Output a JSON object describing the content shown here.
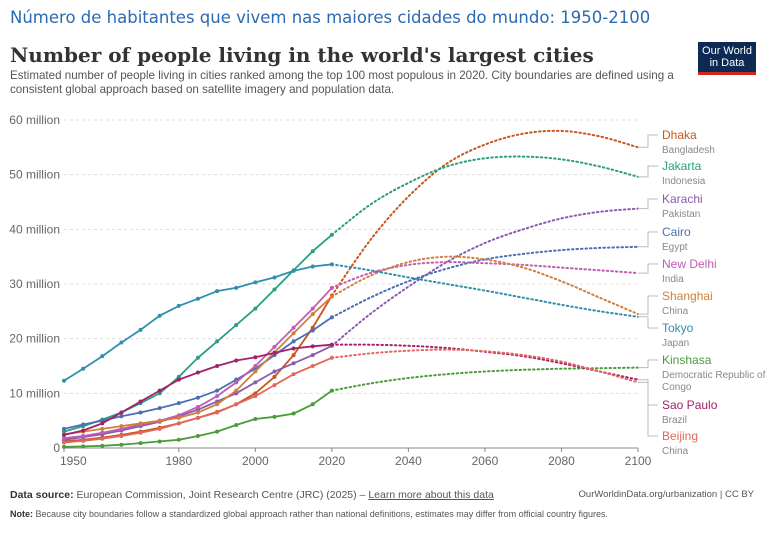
{
  "header": {
    "banner": "Número de habitantes que vivem nas maiores cidades do mundo: 1950-2100",
    "title": "Number of people living in the world's largest cities",
    "subtitle": "Estimated number of people living in cities ranked among the top 100 most populous in 2020. City boundaries are defined using a consistent global approach based on satellite imagery and population data.",
    "logo_line1": "Our World",
    "logo_line2": "in Data"
  },
  "footer": {
    "source_label": "Data source:",
    "source_text": "European Commission, Joint Research Centre (JRC) (2025) –",
    "source_link": "Learn more about this data",
    "right_text": "OurWorldinData.org/urbanization | CC BY",
    "note_label": "Note:",
    "note_text": "Because city boundaries follow a standardized global approach rather than national definitions, estimates may differ from official country figures."
  },
  "chart_data": {
    "type": "line",
    "title": "Number of people living in the world's largest cities",
    "ylim": [
      0,
      60
    ],
    "xlim": [
      1950,
      2100
    ],
    "y_ticks": [
      0,
      10,
      20,
      30,
      40,
      50,
      60
    ],
    "y_tick_labels": [
      "0",
      "10 million",
      "20 million",
      "30 million",
      "40 million",
      "50 million",
      "60 million"
    ],
    "x_ticks": [
      1950,
      1980,
      2000,
      2020,
      2040,
      2060,
      2080,
      2100
    ],
    "x_tick_labels": [
      "1950",
      "1980",
      "2000",
      "2020",
      "2040",
      "2060",
      "2080",
      "2100"
    ],
    "grid": "horizontal dashed",
    "legend": "right, labels at line ends",
    "observed_x": [
      1950,
      1955,
      1960,
      1965,
      1970,
      1975,
      1980,
      1985,
      1990,
      1995,
      2000,
      2005,
      2010,
      2015,
      2020
    ],
    "projection_x": [
      2020,
      2030,
      2040,
      2050,
      2060,
      2070,
      2080,
      2090,
      2100
    ],
    "series": [
      {
        "name": "Dhaka",
        "country": "Bangladesh",
        "color": "#c8561c",
        "observed": [
          1.2,
          1.5,
          1.9,
          2.4,
          3.0,
          3.7,
          4.5,
          5.5,
          6.6,
          8.0,
          10.0,
          13.0,
          17.0,
          22.0,
          27.9
        ],
        "projection": [
          27.9,
          38.0,
          46.0,
          52.0,
          55.5,
          57.5,
          58.0,
          57.0,
          55.0
        ]
      },
      {
        "name": "Jakarta",
        "country": "Indonesia",
        "color": "#2a9d82",
        "observed": [
          3.0,
          4.0,
          5.2,
          6.5,
          8.2,
          10.0,
          13.0,
          16.5,
          19.5,
          22.5,
          25.5,
          29.0,
          32.5,
          36.0,
          39.0
        ],
        "projection": [
          39.0,
          44.5,
          48.5,
          51.5,
          53.0,
          53.3,
          52.8,
          51.5,
          49.6
        ]
      },
      {
        "name": "Karachi",
        "country": "Pakistan",
        "color": "#8a5ab0",
        "observed": [
          1.5,
          2.0,
          2.5,
          3.2,
          4.0,
          4.8,
          5.8,
          7.0,
          8.5,
          10.0,
          12.0,
          14.0,
          15.5,
          17.0,
          18.7
        ],
        "projection": [
          18.7,
          24.5,
          29.5,
          34.0,
          37.5,
          40.0,
          42.0,
          43.2,
          43.8
        ]
      },
      {
        "name": "Cairo",
        "country": "Egypt",
        "color": "#4b6fb3",
        "observed": [
          3.5,
          4.3,
          5.0,
          5.8,
          6.5,
          7.3,
          8.2,
          9.2,
          10.5,
          12.5,
          14.5,
          17.0,
          19.5,
          21.5,
          23.9
        ],
        "projection": [
          23.9,
          27.5,
          30.5,
          32.8,
          34.5,
          35.5,
          36.2,
          36.6,
          36.8
        ]
      },
      {
        "name": "New Delhi",
        "country": "India",
        "color": "#c15cb4",
        "observed": [
          1.8,
          2.2,
          2.8,
          3.5,
          4.3,
          5.0,
          6.0,
          7.5,
          9.5,
          12.0,
          15.0,
          18.5,
          22.0,
          25.5,
          29.3
        ],
        "projection": [
          29.3,
          32.0,
          33.5,
          34.0,
          33.8,
          33.5,
          33.0,
          32.5,
          32.0
        ]
      },
      {
        "name": "Shanghai",
        "country": "China",
        "color": "#d27f3a",
        "observed": [
          2.5,
          3.0,
          3.5,
          4.0,
          4.5,
          5.0,
          5.5,
          6.5,
          8.0,
          10.5,
          14.0,
          17.5,
          21.0,
          24.5,
          27.7
        ],
        "projection": [
          27.7,
          31.5,
          34.0,
          35.0,
          34.5,
          33.0,
          30.5,
          27.5,
          24.5
        ]
      },
      {
        "name": "Tokyo",
        "country": "Japan",
        "color": "#2f8fae",
        "observed": [
          12.3,
          14.5,
          16.8,
          19.3,
          21.6,
          24.2,
          26.0,
          27.3,
          28.7,
          29.3,
          30.3,
          31.2,
          32.4,
          33.2,
          33.6
        ],
        "projection": [
          33.6,
          32.5,
          31.2,
          30.0,
          28.8,
          27.5,
          26.2,
          25.0,
          24.0
        ]
      },
      {
        "name": "Kinshasa",
        "country": "Democratic Republic of Congo",
        "color": "#4a9c3a",
        "observed": [
          0.2,
          0.3,
          0.4,
          0.6,
          0.9,
          1.2,
          1.5,
          2.2,
          3.0,
          4.2,
          5.3,
          5.7,
          6.3,
          8.0,
          10.5
        ],
        "projection": [
          10.5,
          11.8,
          12.8,
          13.5,
          14.0,
          14.3,
          14.5,
          14.6,
          14.7
        ]
      },
      {
        "name": "Sao Paulo",
        "country": "Brazil",
        "color": "#a4206a",
        "observed": [
          2.4,
          3.2,
          4.5,
          6.5,
          8.5,
          10.5,
          12.5,
          13.8,
          15.0,
          16.0,
          16.6,
          17.4,
          18.2,
          18.6,
          18.9
        ],
        "projection": [
          18.9,
          18.9,
          18.7,
          18.3,
          17.6,
          16.8,
          15.5,
          14.0,
          12.5
        ]
      },
      {
        "name": "Beijing",
        "country": "China",
        "color": "#e2685d",
        "observed": [
          1.0,
          1.3,
          1.7,
          2.2,
          2.8,
          3.5,
          4.5,
          5.5,
          6.5,
          8.0,
          9.5,
          11.5,
          13.5,
          15.0,
          16.5
        ],
        "projection": [
          16.5,
          17.3,
          17.8,
          18.0,
          17.7,
          17.0,
          15.8,
          14.0,
          12.0
        ]
      }
    ]
  }
}
